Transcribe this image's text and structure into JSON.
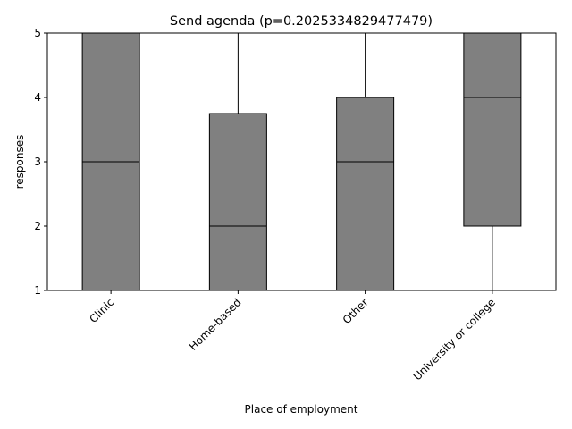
{
  "chart_data": {
    "type": "box",
    "title": "Send agenda (p=0.2025334829477479)",
    "xlabel": "Place of employment",
    "ylabel": "responses",
    "ylim": [
      1,
      5
    ],
    "yticks": [
      1,
      2,
      3,
      4,
      5
    ],
    "grid": false,
    "box_color": "#808080",
    "categories": [
      "Clinic",
      "Home-based",
      "Other",
      "University or college"
    ],
    "boxes": [
      {
        "whisker_low": 1,
        "q1": 1,
        "median": 3,
        "q3": 5,
        "whisker_high": 5
      },
      {
        "whisker_low": 1,
        "q1": 1,
        "median": 2,
        "q3": 3.75,
        "whisker_high": 5
      },
      {
        "whisker_low": 1,
        "q1": 1,
        "median": 3,
        "q3": 4,
        "whisker_high": 5
      },
      {
        "whisker_low": 1,
        "q1": 2,
        "median": 4,
        "q3": 5,
        "whisker_high": 5
      }
    ]
  }
}
